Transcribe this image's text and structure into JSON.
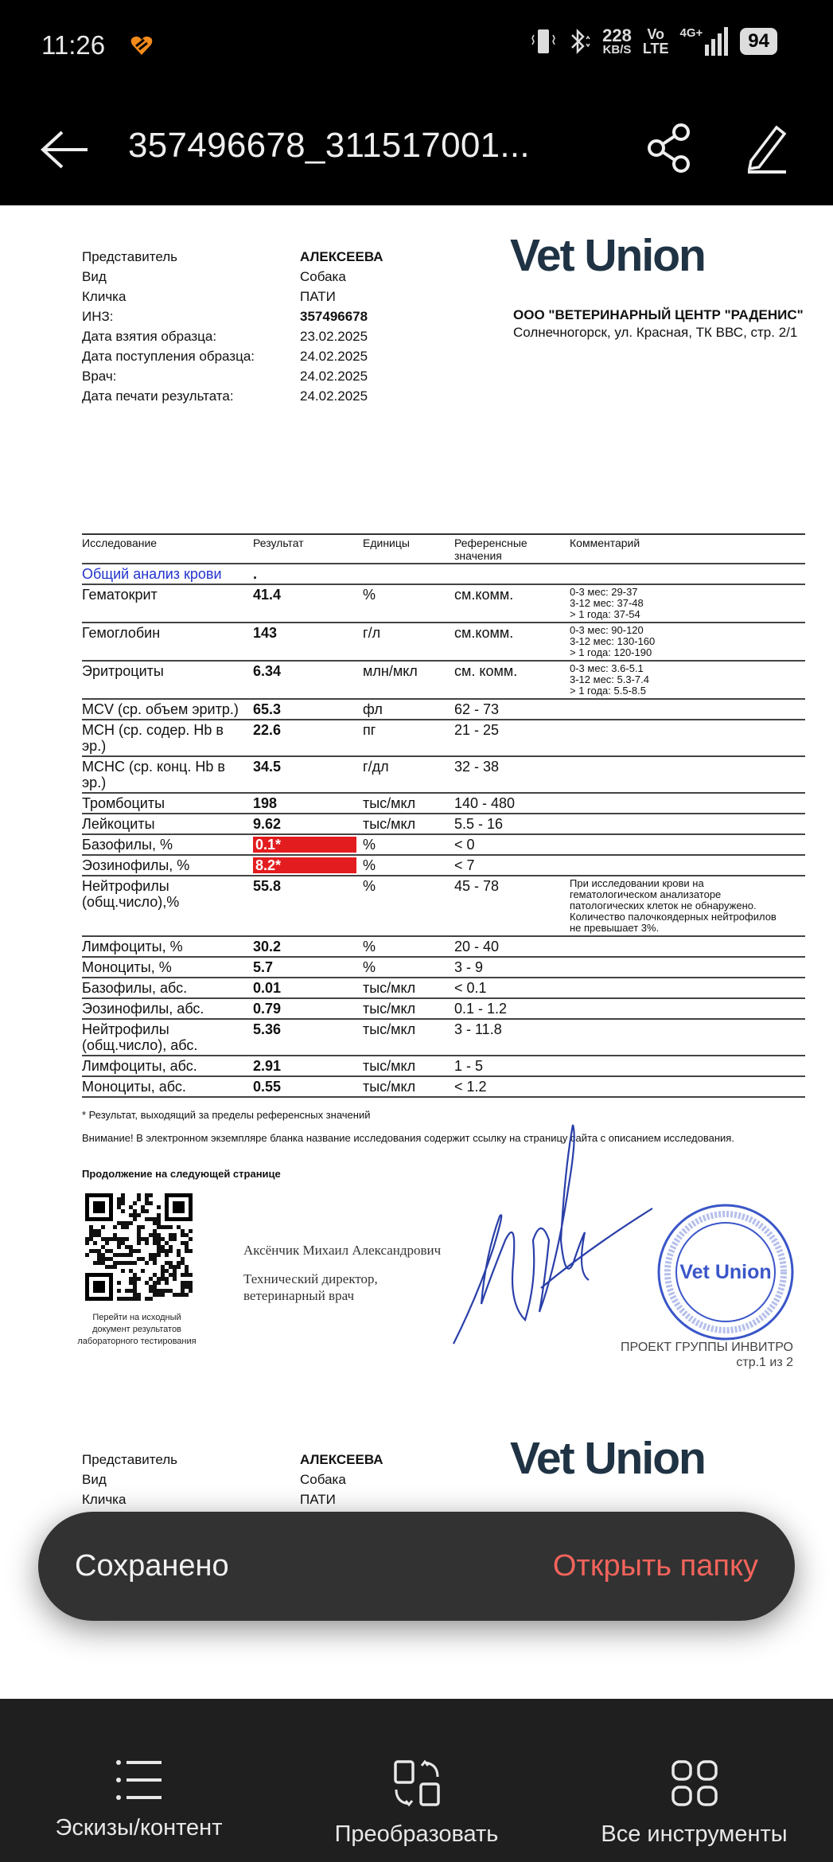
{
  "status_bar": {
    "time": "11:26",
    "net_speed": "228",
    "net_unit": "KB/S",
    "volte_top": "Vo",
    "volte_bottom": "LTE",
    "network": "4G+",
    "battery": "94"
  },
  "app_bar": {
    "title": "357496678_311517001..."
  },
  "document": {
    "info": [
      {
        "label": "Представитель",
        "value": "АЛЕКСЕЕВА",
        "bold": true
      },
      {
        "label": "Вид",
        "value": "Собака"
      },
      {
        "label": "Кличка",
        "value": "ПАТИ"
      },
      {
        "label": "ИНЗ:",
        "value": "357496678",
        "bold": true
      },
      {
        "label": "Дата взятия образца:",
        "value": "23.02.2025"
      },
      {
        "label": "Дата поступления образца:",
        "value": "24.02.2025"
      },
      {
        "label": "Врач:",
        "value": "24.02.2025"
      },
      {
        "label": "Дата печати результата:",
        "value": "24.02.2025"
      }
    ],
    "logo": "Vet Union",
    "org_name": "ООО \"ВЕТЕРИНАРНЫЙ ЦЕНТР \"РАДЕНИС\"",
    "org_address": "Солнечногорск, ул. Красная, ТК ВВС, стр. 2/1",
    "table": {
      "headers": [
        "Исследование",
        "Результат",
        "Единицы",
        "Референсные значения",
        "Комментарий"
      ],
      "section": {
        "title": "Общий анализ крови",
        "result": "."
      },
      "rows": [
        {
          "test": "Гематокрит",
          "result": "41.4",
          "unit": "%",
          "ref": "см.комм.",
          "comment": [
            "0-3 мес: 29-37",
            "3-12 мес: 37-48",
            "> 1 года: 37-54"
          ]
        },
        {
          "test": "Гемоглобин",
          "result": "143",
          "unit": "г/л",
          "ref": "см.комм.",
          "comment": [
            "0-3 мес: 90-120",
            "3-12 мес: 130-160",
            "> 1 года: 120-190"
          ]
        },
        {
          "test": "Эритроциты",
          "result": "6.34",
          "unit": "млн/мкл",
          "ref": "см. комм.",
          "comment": [
            "0-3 мес: 3.6-5.1",
            "3-12 мес: 5.3-7.4",
            "> 1 года: 5.5-8.5"
          ]
        },
        {
          "test": "MCV (ср. объем эритр.)",
          "result": "65.3",
          "unit": "фл",
          "ref": "62 - 73",
          "comment": []
        },
        {
          "test": "MCH (ср. содер. Hb в эр.)",
          "result": "22.6",
          "unit": "пг",
          "ref": "21 - 25",
          "comment": []
        },
        {
          "test": "MCHC (ср. конц. Hb в эр.)",
          "result": "34.5",
          "unit": "г/дл",
          "ref": "32 - 38",
          "comment": []
        },
        {
          "test": "Тромбоциты",
          "result": "198",
          "unit": "тыс/мкл",
          "ref": "140 - 480",
          "comment": []
        },
        {
          "test": "Лейкоциты",
          "result": "9.62",
          "unit": "тыс/мкл",
          "ref": "5.5 - 16",
          "comment": []
        },
        {
          "test": "Базофилы, %",
          "result": "0.1*",
          "unit": "%",
          "ref": "< 0",
          "comment": [],
          "flag": true
        },
        {
          "test": "Эозинофилы, %",
          "result": "8.2*",
          "unit": "%",
          "ref": "< 7",
          "comment": [],
          "flag": true
        },
        {
          "test": "Нейтрофилы (общ.число),%",
          "result": "55.8",
          "unit": "%",
          "ref": "45 - 78",
          "comment": [
            "При исследовании крови на",
            "гематологическом анализаторе",
            "патологических клеток не обнаружено.",
            "Количество палочкоядерных нейтрофилов",
            "не превышает 3%."
          ]
        },
        {
          "test": "Лимфоциты, %",
          "result": "30.2",
          "unit": "%",
          "ref": "20 - 40",
          "comment": []
        },
        {
          "test": "Моноциты, %",
          "result": "5.7",
          "unit": "%",
          "ref": "3 - 9",
          "comment": []
        },
        {
          "test": "Базофилы, абс.",
          "result": "0.01",
          "unit": "тыс/мкл",
          "ref": "< 0.1",
          "comment": []
        },
        {
          "test": "Эозинофилы, абс.",
          "result": "0.79",
          "unit": "тыс/мкл",
          "ref": "0.1 - 1.2",
          "comment": []
        },
        {
          "test": "Нейтрофилы (общ.число), абс.",
          "result": "5.36",
          "unit": "тыс/мкл",
          "ref": "3 - 11.8",
          "comment": []
        },
        {
          "test": "Лимфоциты, абс.",
          "result": "2.91",
          "unit": "тыс/мкл",
          "ref": "1 - 5",
          "comment": []
        },
        {
          "test": "Моноциты, абс.",
          "result": "0.55",
          "unit": "тыс/мкл",
          "ref": "< 1.2",
          "comment": []
        }
      ]
    },
    "footnote": "* Результат, выходящий за пределы референсных значений",
    "notice": "Внимание! В электронном экземпляре бланка название исследования содержит ссылку на страницу сайта с описанием исследования.",
    "continued": "Продолжение на следующей странице",
    "qr_caption": "Перейти на исходный документ результатов лабораторного тестирования",
    "signer_name": "Аксёнчик Михаил Александрович",
    "signer_title_1": "Технический директор,",
    "signer_title_2": "ветеринарный врач",
    "stamp_text": "Vet Union",
    "project": "ПРОЕКТ ГРУППЫ ИНВИТРО",
    "page": "стр.1 из 2",
    "page2_info": [
      {
        "label": "Представитель",
        "value": "АЛЕКСЕЕВА",
        "bold": true
      },
      {
        "label": "Вид",
        "value": "Собака"
      },
      {
        "label": "Кличка",
        "value": "ПАТИ"
      }
    ]
  },
  "toast": {
    "message": "Сохранено",
    "action": "Открыть папку",
    "action_color": "#f2645c"
  },
  "bottom_bar": [
    {
      "label": "Эскизы/контент",
      "icon": "list-icon"
    },
    {
      "label": "Преобразовать",
      "icon": "convert-icon"
    },
    {
      "label": "Все инструменты",
      "icon": "grid-icon"
    }
  ]
}
